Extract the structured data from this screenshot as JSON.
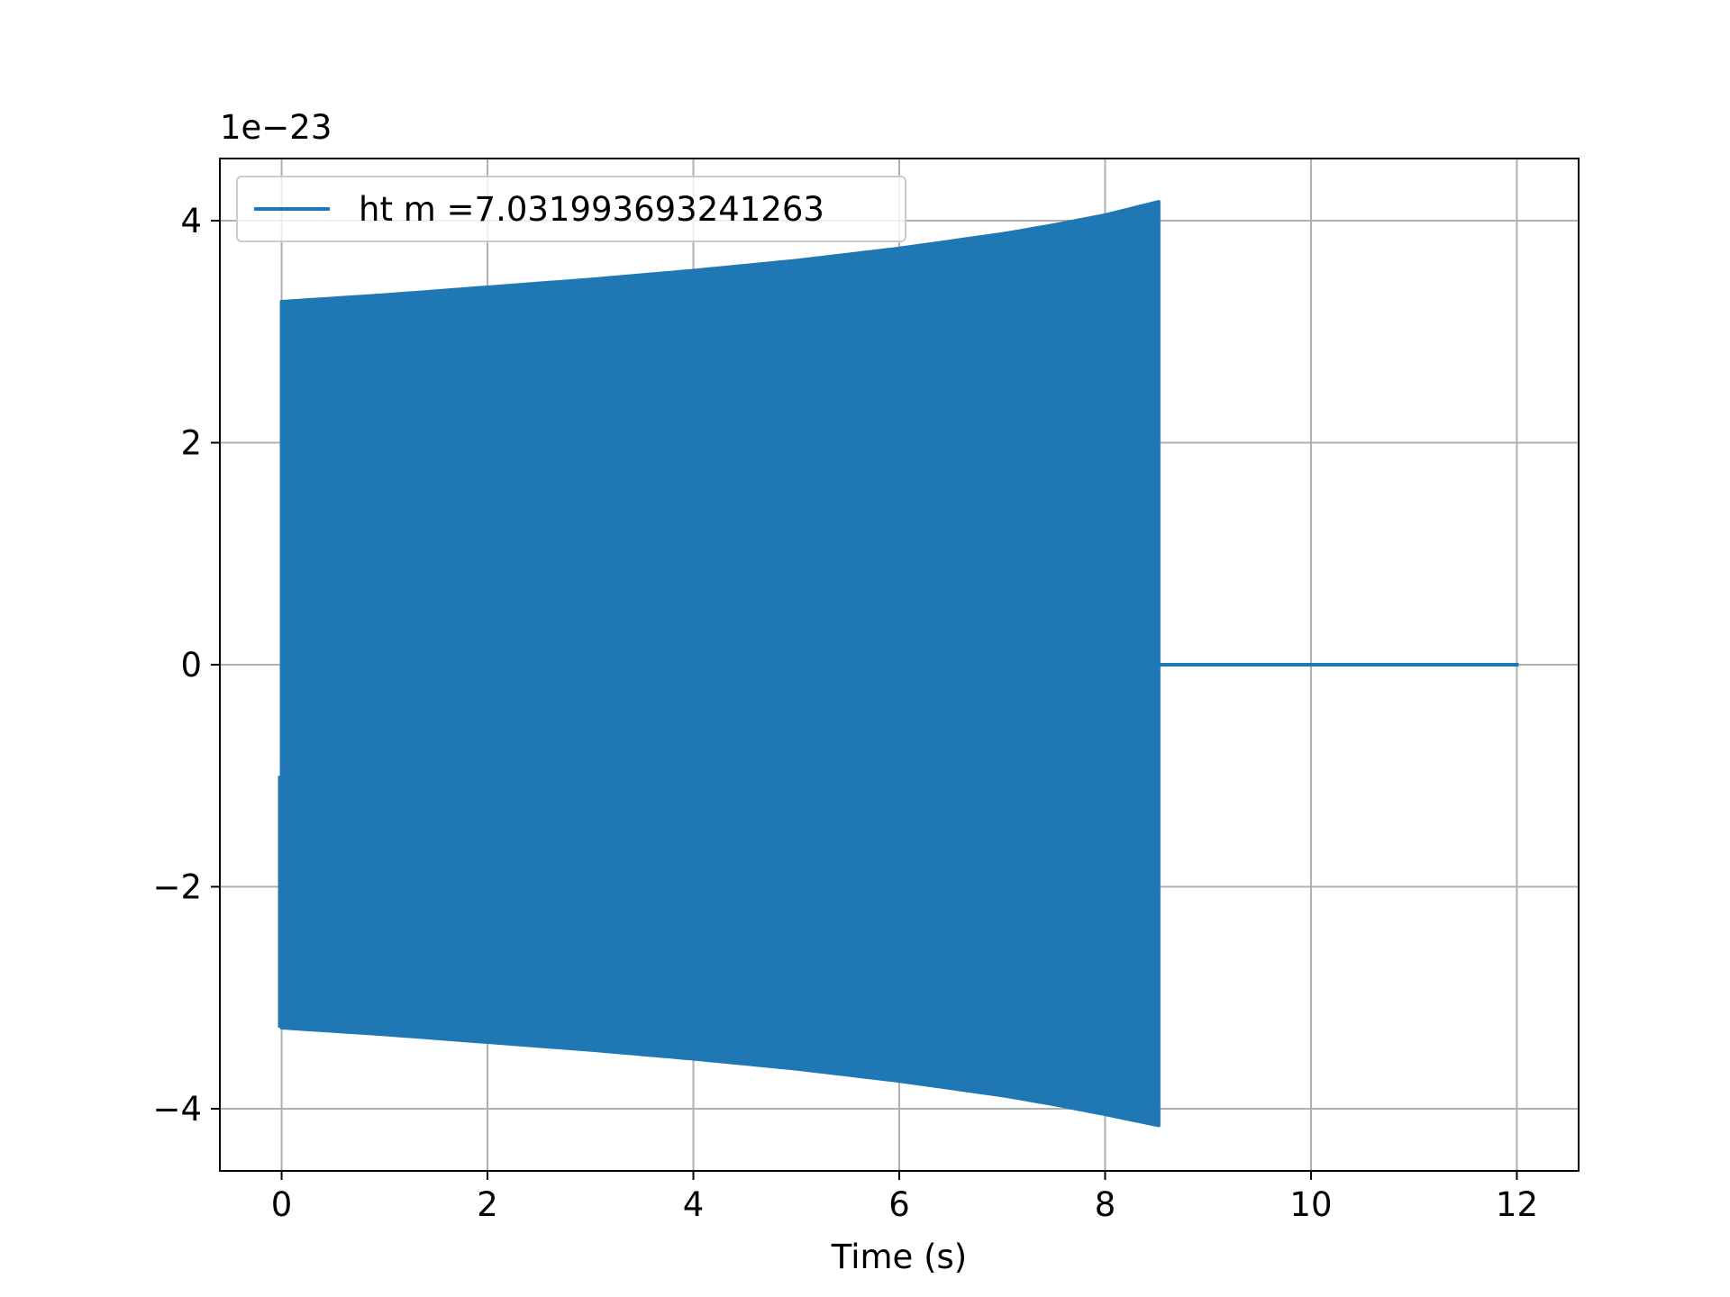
{
  "chart_data": {
    "type": "line",
    "xlabel": "Time (s)",
    "ylabel": "",
    "offset_text": "1e−23",
    "y_scale_exponent": -23,
    "xlim": [
      -0.6,
      12.6
    ],
    "ylim": [
      -4.56,
      4.56
    ],
    "grid": true,
    "legend_position": "upper-left",
    "x_ticks": [
      0,
      2,
      4,
      6,
      8,
      10,
      12
    ],
    "x_tick_labels": [
      "0",
      "2",
      "4",
      "6",
      "8",
      "10",
      "12"
    ],
    "y_ticks": [
      -4,
      -2,
      0,
      2,
      4
    ],
    "y_tick_labels": [
      "−4",
      "−2",
      "0",
      "2",
      "4"
    ],
    "series": [
      {
        "name": "ht m =7.031993693241263",
        "color": "#1f77b4",
        "signal_start": 0.0,
        "signal_end": 8.52,
        "x_end": 12.0,
        "upper_envelope": {
          "t": [
            0.0,
            1.0,
            2.0,
            3.0,
            4.0,
            5.0,
            6.0,
            7.0,
            7.5,
            8.0,
            8.52
          ],
          "amp": [
            3.27,
            3.33,
            3.4,
            3.47,
            3.55,
            3.64,
            3.75,
            3.88,
            3.96,
            4.05,
            4.17
          ]
        },
        "lower_envelope": {
          "t": [
            0.0,
            1.0,
            2.0,
            3.0,
            4.0,
            5.0,
            6.0,
            7.0,
            7.5,
            8.0,
            8.52
          ],
          "amp": [
            -3.27,
            -3.33,
            -3.4,
            -3.47,
            -3.55,
            -3.64,
            -3.75,
            -3.88,
            -3.96,
            -4.05,
            -4.15
          ]
        },
        "initial_value": -1.0,
        "post_signal_value": 0.0
      }
    ]
  }
}
